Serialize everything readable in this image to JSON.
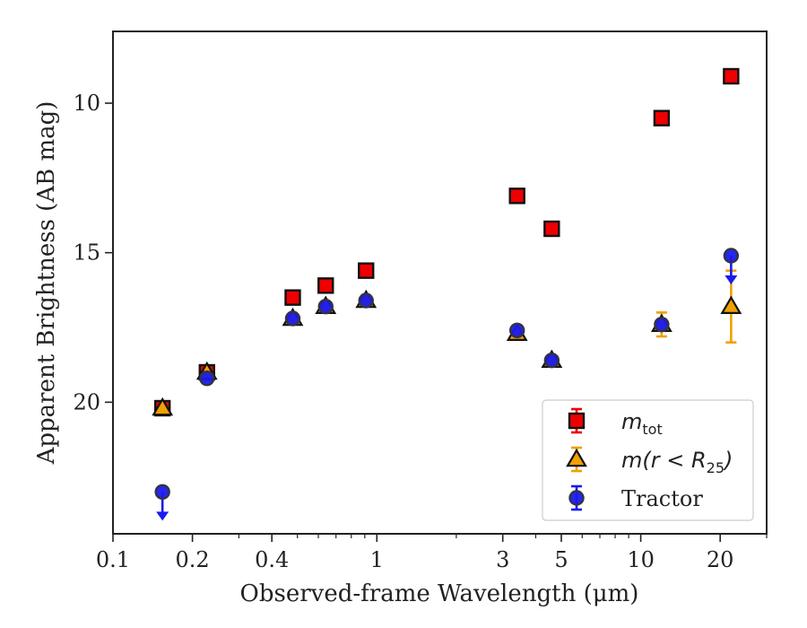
{
  "chart_data": {
    "type": "scatter",
    "xlabel": "Observed-frame Wavelength (μm)",
    "ylabel": "Apparent Brightness (AB mag)",
    "x_scale": "log",
    "y_inverted": true,
    "xlim": [
      0.1,
      30
    ],
    "ylim": [
      24.4,
      7.6
    ],
    "x_ticks": [
      {
        "value": 0.1,
        "label": "0.1"
      },
      {
        "value": 0.2,
        "label": "0.2"
      },
      {
        "value": 0.4,
        "label": "0.4"
      },
      {
        "value": 1,
        "label": "1"
      },
      {
        "value": 3,
        "label": "3"
      },
      {
        "value": 5,
        "label": "5"
      },
      {
        "value": 10,
        "label": "10"
      },
      {
        "value": 20,
        "label": "20"
      }
    ],
    "y_ticks": [
      {
        "value": 10,
        "label": "10"
      },
      {
        "value": 15,
        "label": "15"
      },
      {
        "value": 20,
        "label": "20"
      }
    ],
    "grid": false,
    "legend_position": "lower-right",
    "series": [
      {
        "name": "m_tot",
        "legend_main": "m",
        "legend_sub": "tot",
        "marker": "square",
        "face_color": "#ee0000",
        "edge_color": "#111111",
        "err_color": "#ee0000",
        "points": [
          {
            "x": 0.154,
            "y": 20.2
          },
          {
            "x": 0.227,
            "y": 19.0
          },
          {
            "x": 0.48,
            "y": 16.5
          },
          {
            "x": 0.64,
            "y": 16.1
          },
          {
            "x": 0.91,
            "y": 15.6
          },
          {
            "x": 3.4,
            "y": 13.1
          },
          {
            "x": 4.6,
            "y": 14.2
          },
          {
            "x": 12.0,
            "y": 10.5
          },
          {
            "x": 22.0,
            "y": 9.1
          }
        ]
      },
      {
        "name": "m(r < R_25)",
        "legend_main": "m(r < R",
        "legend_sub": "25",
        "legend_tail": ")",
        "marker": "triangle",
        "face_color": "#f0a000",
        "edge_color": "#111111",
        "err_color": "#f0a000",
        "points": [
          {
            "x": 0.154,
            "y": 20.2
          },
          {
            "x": 0.227,
            "y": 19.0
          },
          {
            "x": 0.48,
            "y": 17.2
          },
          {
            "x": 0.64,
            "y": 16.8
          },
          {
            "x": 0.91,
            "y": 16.6
          },
          {
            "x": 3.4,
            "y": 17.7
          },
          {
            "x": 4.6,
            "y": 18.6
          },
          {
            "x": 12.0,
            "y": 17.4,
            "err": 0.4
          },
          {
            "x": 22.0,
            "y": 16.8,
            "err": 1.2
          }
        ]
      },
      {
        "name": "Tractor",
        "legend_main": "Tractor",
        "marker": "circle",
        "face_color": "#1a1aee",
        "edge_color": "#333344",
        "err_color": "#1a1aee",
        "points": [
          {
            "x": 0.154,
            "y": 23.0,
            "upper_limit": true
          },
          {
            "x": 0.227,
            "y": 19.2
          },
          {
            "x": 0.48,
            "y": 17.2
          },
          {
            "x": 0.64,
            "y": 16.8
          },
          {
            "x": 0.91,
            "y": 16.6
          },
          {
            "x": 3.4,
            "y": 17.6
          },
          {
            "x": 4.6,
            "y": 18.6
          },
          {
            "x": 12.0,
            "y": 17.4
          },
          {
            "x": 22.0,
            "y": 15.1,
            "upper_limit": true
          }
        ]
      }
    ]
  }
}
